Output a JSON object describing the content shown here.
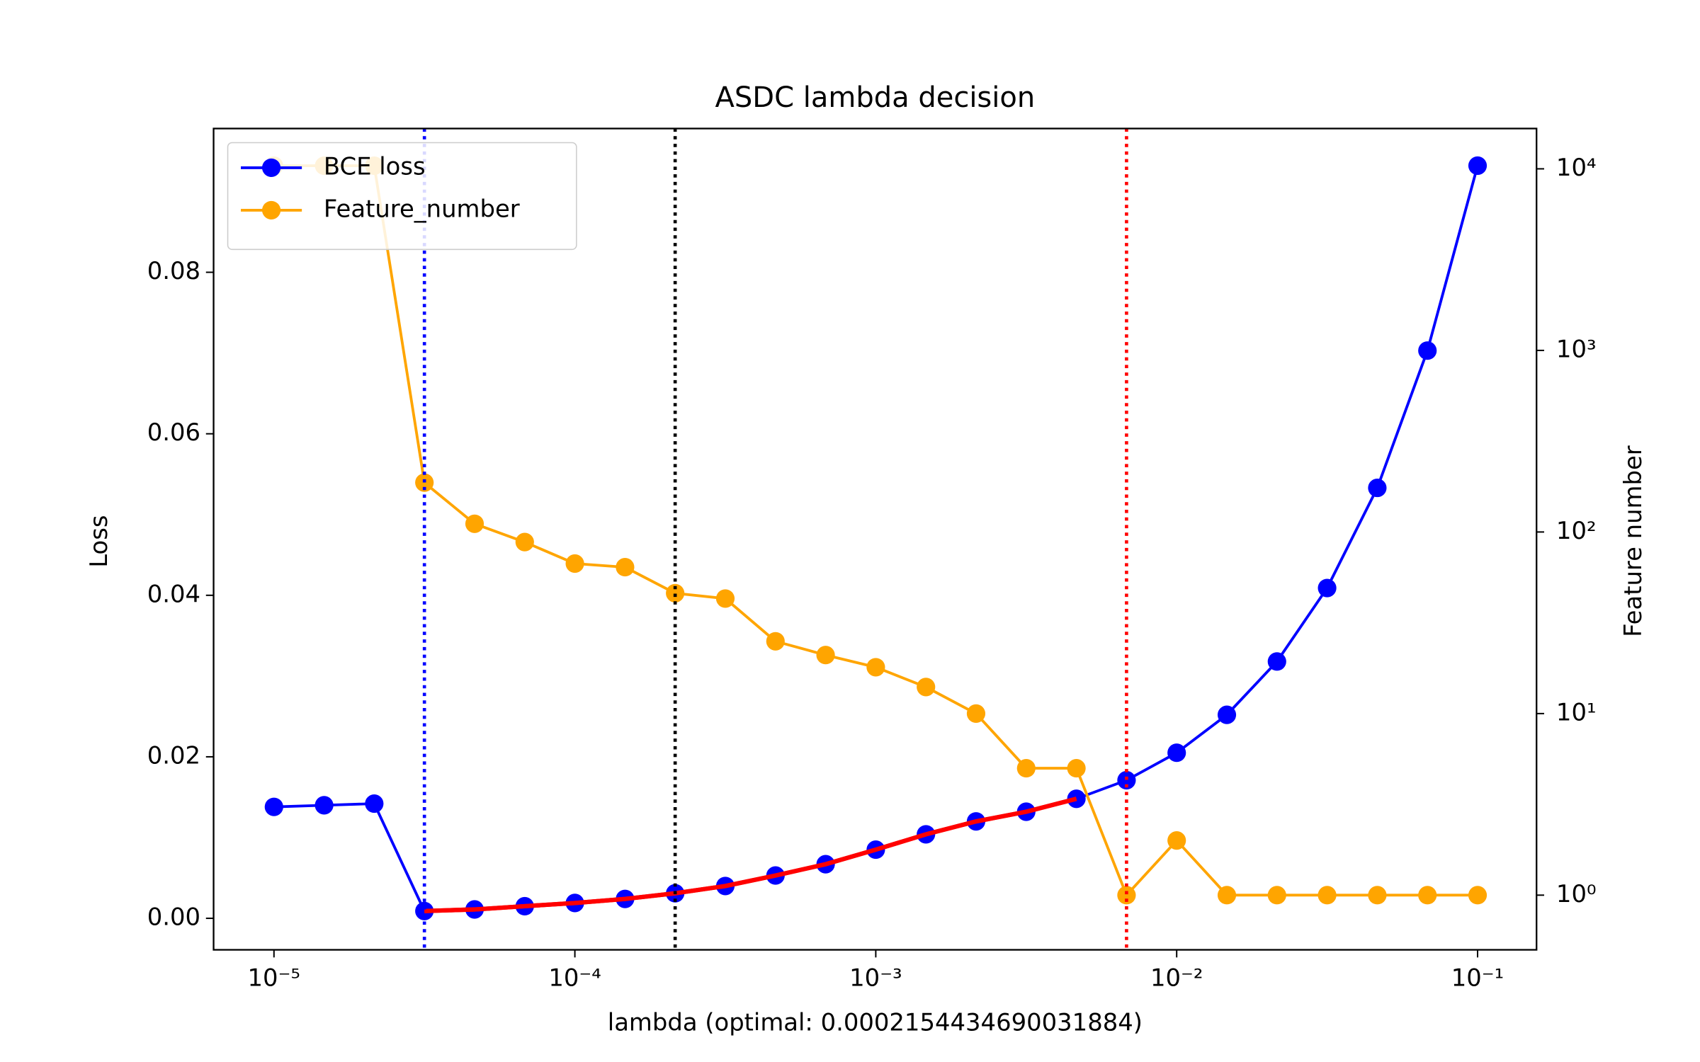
{
  "chart_data": {
    "type": "line",
    "title": "ASDC lambda decision",
    "xlabel": "lambda (optimal: 0.0002154434690031884)",
    "ylabel": "Loss",
    "y2label": "Feature number",
    "xscale": "log",
    "y2scale": "log",
    "grid": false,
    "legend": "upper left",
    "x": [
      1e-05,
      1.468e-05,
      2.154e-05,
      3.162e-05,
      4.642e-05,
      6.813e-05,
      0.0001,
      0.0001468,
      0.0002154,
      0.0003162,
      0.0004642,
      0.0006813,
      0.001,
      0.001468,
      0.002154,
      0.003162,
      0.004642,
      0.006813,
      0.01,
      0.01468,
      0.02154,
      0.03162,
      0.04642,
      0.06813,
      0.1
    ],
    "series": [
      {
        "name": "BCE loss",
        "color": "#0000ff",
        "values": [
          0.0138,
          0.014,
          0.0142,
          0.0009,
          0.0011,
          0.0015,
          0.0019,
          0.0024,
          0.0031,
          0.004,
          0.0053,
          0.0067,
          0.0085,
          0.0104,
          0.012,
          0.0132,
          0.0148,
          0.0171,
          0.0205,
          0.0252,
          0.0318,
          0.0409,
          0.0533,
          0.0703,
          0.0932
        ]
      },
      {
        "name": "Feature_number",
        "color": "#ffa500",
        "axis": "y2",
        "values": [
          10400,
          10400,
          10400,
          187,
          111,
          88,
          67,
          64,
          46,
          43,
          25,
          21,
          18,
          14,
          10,
          5,
          5,
          1,
          2,
          1,
          1,
          1,
          1,
          1,
          1
        ]
      },
      {
        "color": "#ff0000",
        "marker": false,
        "values": [
          null,
          null,
          null,
          0.0009,
          0.0011,
          0.0015,
          0.0019,
          0.0024,
          0.0031,
          0.004,
          0.0053,
          0.0067,
          0.0085,
          0.0104,
          0.012,
          0.0132,
          0.0148,
          null,
          null,
          null,
          null,
          null,
          null,
          null,
          null
        ]
      }
    ],
    "vlines": [
      {
        "x": 3.162e-05,
        "color": "#0000ff"
      },
      {
        "x": 0.0002154,
        "color": "#000000"
      },
      {
        "x": 0.006813,
        "color": "#ff0000"
      }
    ],
    "xlim": [
      6.3e-06,
      0.157
    ],
    "xticks": [
      {
        "value": 1e-05,
        "label": "10⁻⁵"
      },
      {
        "value": 0.0001,
        "label": "10⁻⁴"
      },
      {
        "value": 0.001,
        "label": "10⁻³"
      },
      {
        "value": 0.01,
        "label": "10⁻²"
      },
      {
        "value": 0.1,
        "label": "10⁻¹"
      }
    ],
    "ylim": [
      -0.0039,
      0.0978
    ],
    "yticks": [
      {
        "value": 0,
        "label": "0.00"
      },
      {
        "value": 0.02,
        "label": "0.02"
      },
      {
        "value": 0.04,
        "label": "0.04"
      },
      {
        "value": 0.06,
        "label": "0.06"
      },
      {
        "value": 0.08,
        "label": "0.08"
      }
    ],
    "y2lim": [
      0.5,
      16670
    ],
    "y2ticks": [
      {
        "value": 1,
        "label": "10⁰"
      },
      {
        "value": 10,
        "label": "10¹"
      },
      {
        "value": 100,
        "label": "10²"
      },
      {
        "value": 1000,
        "label": "10³"
      },
      {
        "value": 10000,
        "label": "10⁴"
      }
    ]
  }
}
